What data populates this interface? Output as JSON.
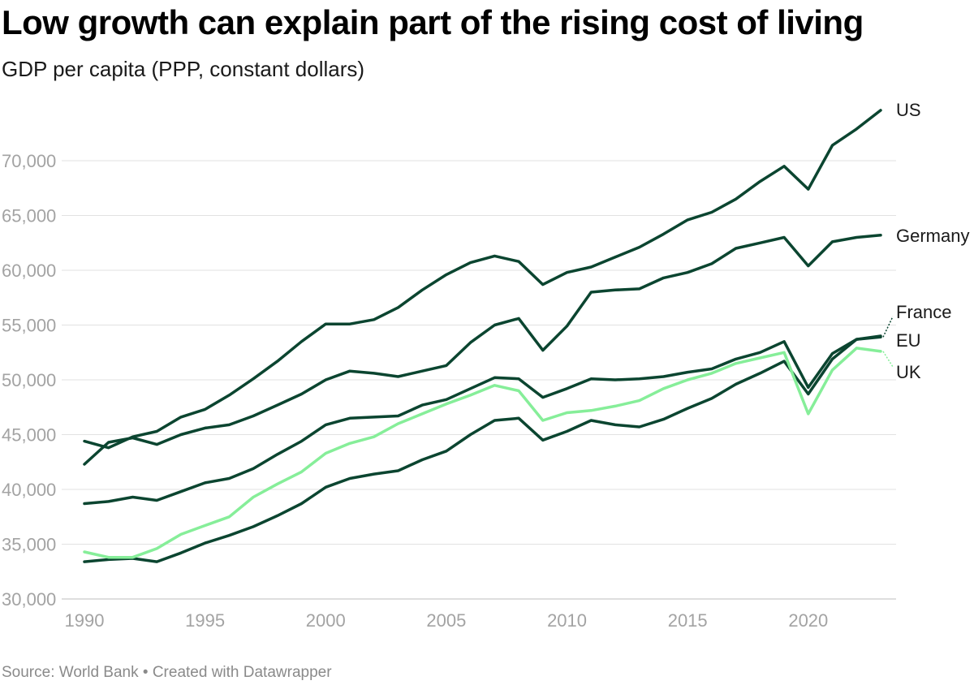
{
  "header": {
    "title": "Low growth can explain part of the rising cost of living",
    "subtitle": "GDP per capita (PPP, constant dollars)"
  },
  "footer": {
    "source": "Source: World Bank • Created with Datawrapper"
  },
  "colors": {
    "dark": "#0b4530",
    "light": "#86ee99",
    "grid": "#e2e2e2",
    "tick": "#a3a3a3"
  },
  "chart_data": {
    "type": "line",
    "title": "Low growth can explain part of the rising cost of living",
    "ylabel": "GDP per capita (PPP, constant dollars)",
    "xlabel": "",
    "xlim": [
      1990,
      2023
    ],
    "ylim": [
      30000,
      75000
    ],
    "x_ticks": [
      1990,
      1995,
      2000,
      2005,
      2010,
      2015,
      2020
    ],
    "x_tick_labels": [
      "1990",
      "1995",
      "2000",
      "2005",
      "2010",
      "2015",
      "2020"
    ],
    "y_ticks": [
      30000,
      35000,
      40000,
      45000,
      50000,
      55000,
      60000,
      65000,
      70000
    ],
    "y_tick_labels": [
      "30,000",
      "35,000",
      "40,000",
      "45,000",
      "50,000",
      "55,000",
      "60,000",
      "65,000",
      "70,000"
    ],
    "grid": true,
    "x": [
      1990,
      1991,
      1992,
      1993,
      1994,
      1995,
      1996,
      1997,
      1998,
      1999,
      2000,
      2001,
      2002,
      2003,
      2004,
      2005,
      2006,
      2007,
      2008,
      2009,
      2010,
      2011,
      2012,
      2013,
      2014,
      2015,
      2016,
      2017,
      2018,
      2019,
      2020,
      2021,
      2022,
      2023
    ],
    "series": [
      {
        "name": "US",
        "label": "US",
        "color": "#0b4530",
        "values": [
          44400,
          43800,
          44800,
          45300,
          46600,
          47300,
          48600,
          50100,
          51700,
          53500,
          55100,
          55100,
          55500,
          56600,
          58200,
          59600,
          60700,
          61300,
          60800,
          58700,
          59800,
          60300,
          61200,
          62100,
          63300,
          64600,
          65300,
          66500,
          68100,
          69500,
          67400,
          71400,
          72900,
          74600
        ]
      },
      {
        "name": "Germany",
        "label": "Germany",
        "color": "#0b4530",
        "values": [
          42300,
          44300,
          44700,
          44100,
          45000,
          45600,
          45900,
          46700,
          47700,
          48700,
          50000,
          50800,
          50600,
          50300,
          50800,
          51300,
          53400,
          55000,
          55600,
          52700,
          54900,
          58000,
          58200,
          58300,
          59300,
          59800,
          60600,
          62000,
          62500,
          63000,
          60400,
          62600,
          63000,
          63200
        ]
      },
      {
        "name": "France",
        "label": "France",
        "color": "#0b4530",
        "values": [
          38700,
          38900,
          39300,
          39000,
          39800,
          40600,
          41000,
          41900,
          43200,
          44400,
          45900,
          46500,
          46600,
          46700,
          47700,
          48200,
          49200,
          50200,
          50100,
          48400,
          49200,
          50100,
          50000,
          50100,
          50300,
          50700,
          51000,
          51900,
          52500,
          53500,
          49300,
          52400,
          53700,
          53900
        ]
      },
      {
        "name": "EU",
        "label": "EU",
        "color": "#0b4530",
        "values": [
          33400,
          33600,
          33700,
          33400,
          34200,
          35100,
          35800,
          36600,
          37600,
          38700,
          40200,
          41000,
          41400,
          41700,
          42700,
          43500,
          45000,
          46300,
          46500,
          44500,
          45300,
          46300,
          45900,
          45700,
          46400,
          47400,
          48300,
          49600,
          50600,
          51700,
          48700,
          51900,
          53700,
          54000
        ]
      },
      {
        "name": "UK",
        "label": "UK",
        "color": "#86ee99",
        "values": [
          34300,
          33800,
          33800,
          34600,
          35900,
          36700,
          37500,
          39300,
          40500,
          41600,
          43300,
          44200,
          44800,
          46000,
          46900,
          47800,
          48600,
          49500,
          49000,
          46300,
          47000,
          47200,
          47600,
          48100,
          49200,
          50000,
          50600,
          51500,
          52000,
          52500,
          46900,
          50900,
          52900,
          52600
        ]
      }
    ]
  }
}
